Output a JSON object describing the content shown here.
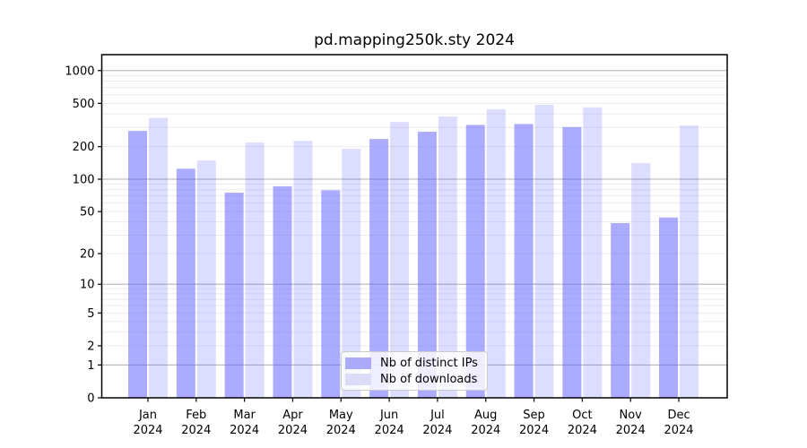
{
  "title": "pd.mapping250k.sty 2024",
  "colors": {
    "bar_ips": "rgba(102,102,255,0.55)",
    "bar_downloads": "rgba(102,102,255,0.22)",
    "legend_ips_swatch": "#aaaaf8",
    "legend_downloads_swatch": "#dcdcf8",
    "grid_major": "#bdbdbd",
    "grid_minor": "#ececec",
    "spine": "#000000",
    "tick_label": "#000000"
  },
  "legend": {
    "items": [
      {
        "label": "Nb of distinct IPs",
        "color": "#aaaaf8"
      },
      {
        "label": "Nb of downloads",
        "color": "#dcdcf8"
      }
    ],
    "position": "lower center"
  },
  "chart_data": {
    "type": "bar",
    "title": "pd.mapping250k.sty 2024",
    "categories": [
      "Jan",
      "Feb",
      "Mar",
      "Apr",
      "May",
      "Jun",
      "Jul",
      "Aug",
      "Sep",
      "Oct",
      "Nov",
      "Dec"
    ],
    "category_year_line": "2024",
    "series": [
      {
        "name": "Nb of distinct IPs",
        "values": [
          279,
          125,
          75,
          86,
          79,
          235,
          274,
          317,
          323,
          303,
          39,
          44
        ]
      },
      {
        "name": "Nb of downloads",
        "values": [
          368,
          149,
          218,
          226,
          191,
          337,
          378,
          442,
          486,
          460,
          141,
          313
        ]
      }
    ],
    "xlabel": "",
    "ylabel": "",
    "yscale": "log1p",
    "ylim": [
      0,
      1400
    ],
    "ytick_values": [
      1000,
      500,
      200,
      100,
      50,
      20,
      10,
      5,
      2,
      1,
      0
    ],
    "ytick_labels": [
      "1000",
      "500",
      "200",
      "100",
      "50",
      "20",
      "10",
      "5",
      "2",
      "1",
      "0"
    ],
    "grid_major_values": [
      1,
      10,
      100,
      1000
    ],
    "grid_minor_values": [
      2,
      3,
      4,
      5,
      6,
      7,
      8,
      9,
      20,
      30,
      40,
      50,
      60,
      70,
      80,
      90,
      200,
      300,
      400,
      500,
      600,
      700,
      800,
      900
    ],
    "grid": true,
    "legend_position": "lower center"
  }
}
